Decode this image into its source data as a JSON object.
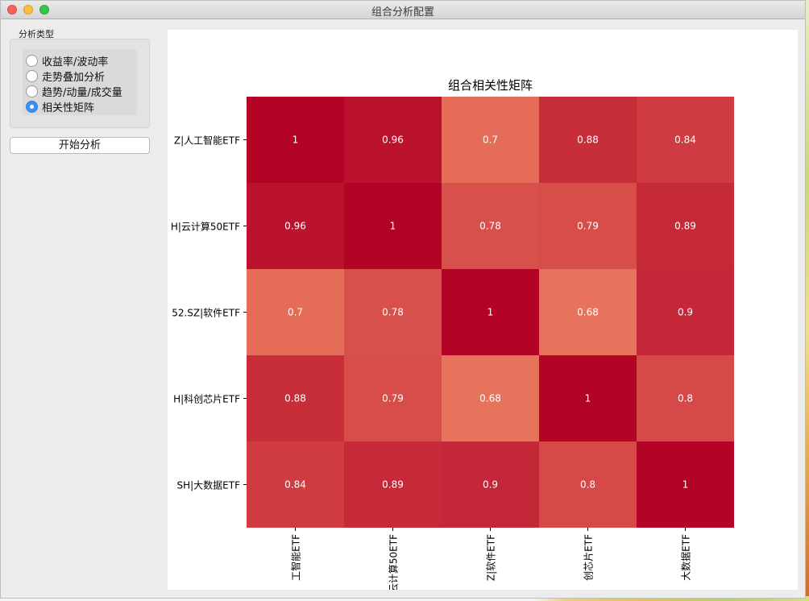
{
  "window": {
    "title": "组合分析配置"
  },
  "sidebar": {
    "group_label": "分析类型",
    "options": [
      {
        "label": "收益率/波动率",
        "checked": false
      },
      {
        "label": "走势叠加分析",
        "checked": false
      },
      {
        "label": "趋势/动量/成交量",
        "checked": false
      },
      {
        "label": "相关性矩阵",
        "checked": true
      }
    ],
    "start_button": "开始分析"
  },
  "chart_data": {
    "type": "heatmap",
    "title": "组合相关性矩阵",
    "row_labels": [
      "Z|人工智能ETF",
      "H|云计算50ETF",
      "52.SZ|软件ETF",
      "H|科创芯片ETF",
      "SH|大数据ETF"
    ],
    "col_labels": [
      "工智能ETF",
      "云计算50ETF",
      "Z|软件ETF",
      "创芯片ETF",
      "大数据ETF"
    ],
    "values": [
      [
        1,
        0.96,
        0.7,
        0.88,
        0.84
      ],
      [
        0.96,
        1,
        0.78,
        0.79,
        0.89
      ],
      [
        0.7,
        0.78,
        1,
        0.68,
        0.9
      ],
      [
        0.88,
        0.79,
        0.68,
        1,
        0.8
      ],
      [
        0.84,
        0.89,
        0.9,
        0.8,
        1
      ]
    ],
    "value_range": [
      0.68,
      1
    ],
    "colormap": {
      "low": "#e8735c",
      "high": "#b40426"
    },
    "annotation_color": "#ffffff"
  }
}
